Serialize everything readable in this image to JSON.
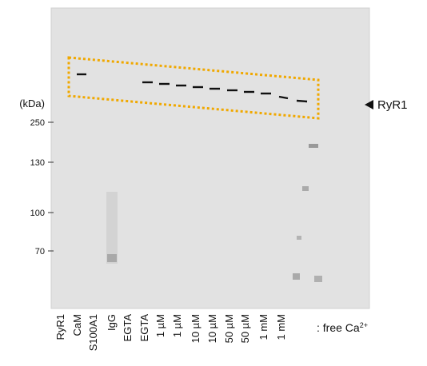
{
  "markers": {
    "unit": "(kDa)",
    "labels": [
      "250",
      "130",
      "100",
      "70"
    ]
  },
  "lanes": [
    "RyR1",
    "CaM",
    "S100A1",
    "IgG",
    "EGTA",
    "EGTA",
    "1 µM",
    "1 µM",
    "10 µM",
    "10 µM",
    "50 µM",
    "50 µM",
    "1 mM",
    "1 mM"
  ],
  "condition": {
    "text": ": free Ca",
    "superscript": "2+"
  },
  "band_label": "RyR1"
}
